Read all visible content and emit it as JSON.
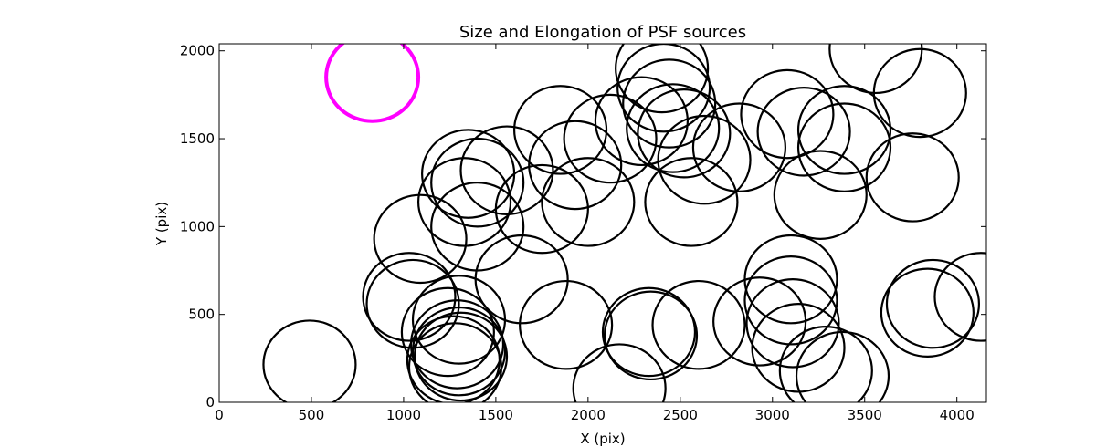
{
  "chart_data": {
    "type": "scatter",
    "title": "Size and Elongation of PSF sources",
    "xlabel": "X (pix)",
    "ylabel": "Y (pix)",
    "xlim": [
      0,
      4160
    ],
    "ylim": [
      0,
      2040
    ],
    "xticks": [
      0,
      500,
      1000,
      1500,
      2000,
      2500,
      3000,
      3500,
      4000
    ],
    "yticks": [
      0,
      500,
      1000,
      1500,
      2000
    ],
    "grid": false,
    "series": [
      {
        "marker": "circle-outline",
        "color": "#000000",
        "radius": 250,
        "points": [
          {
            "x": 490,
            "y": 215
          },
          {
            "x": 1030,
            "y": 600
          },
          {
            "x": 1050,
            "y": 560
          },
          {
            "x": 1300,
            "y": 470
          },
          {
            "x": 1240,
            "y": 400
          },
          {
            "x": 1290,
            "y": 330
          },
          {
            "x": 1300,
            "y": 290
          },
          {
            "x": 1310,
            "y": 260
          },
          {
            "x": 1270,
            "y": 240
          },
          {
            "x": 1280,
            "y": 200
          },
          {
            "x": 1090,
            "y": 930
          },
          {
            "x": 1400,
            "y": 1000
          },
          {
            "x": 1330,
            "y": 1140
          },
          {
            "x": 1400,
            "y": 1250
          },
          {
            "x": 1350,
            "y": 1300
          },
          {
            "x": 1560,
            "y": 1320
          },
          {
            "x": 1750,
            "y": 1100
          },
          {
            "x": 1640,
            "y": 700
          },
          {
            "x": 1880,
            "y": 440
          },
          {
            "x": 1850,
            "y": 1550
          },
          {
            "x": 1930,
            "y": 1350
          },
          {
            "x": 2000,
            "y": 1140
          },
          {
            "x": 2120,
            "y": 1500
          },
          {
            "x": 2290,
            "y": 1600
          },
          {
            "x": 2170,
            "y": 80
          },
          {
            "x": 2330,
            "y": 400
          },
          {
            "x": 2340,
            "y": 380
          },
          {
            "x": 2400,
            "y": 1900
          },
          {
            "x": 2410,
            "y": 1790
          },
          {
            "x": 2440,
            "y": 1700
          },
          {
            "x": 2460,
            "y": 1560
          },
          {
            "x": 2520,
            "y": 1530
          },
          {
            "x": 2560,
            "y": 1140
          },
          {
            "x": 2630,
            "y": 1380
          },
          {
            "x": 2600,
            "y": 440
          },
          {
            "x": 2820,
            "y": 1450
          },
          {
            "x": 2930,
            "y": 460
          },
          {
            "x": 3080,
            "y": 1640
          },
          {
            "x": 3100,
            "y": 700
          },
          {
            "x": 3100,
            "y": 580
          },
          {
            "x": 3110,
            "y": 450
          },
          {
            "x": 3140,
            "y": 310
          },
          {
            "x": 3170,
            "y": 1540
          },
          {
            "x": 3260,
            "y": 1180
          },
          {
            "x": 3290,
            "y": 180
          },
          {
            "x": 3390,
            "y": 1550
          },
          {
            "x": 3390,
            "y": 1450
          },
          {
            "x": 3380,
            "y": 150
          },
          {
            "x": 3560,
            "y": 2010
          },
          {
            "x": 3760,
            "y": 1280
          },
          {
            "x": 3800,
            "y": 1760
          },
          {
            "x": 3840,
            "y": 510
          },
          {
            "x": 3870,
            "y": 560
          },
          {
            "x": 4130,
            "y": 600
          }
        ]
      },
      {
        "marker": "circle-outline",
        "color": "#ff00ff",
        "radius": 250,
        "points": [
          {
            "x": 830,
            "y": 1850
          }
        ]
      }
    ]
  }
}
